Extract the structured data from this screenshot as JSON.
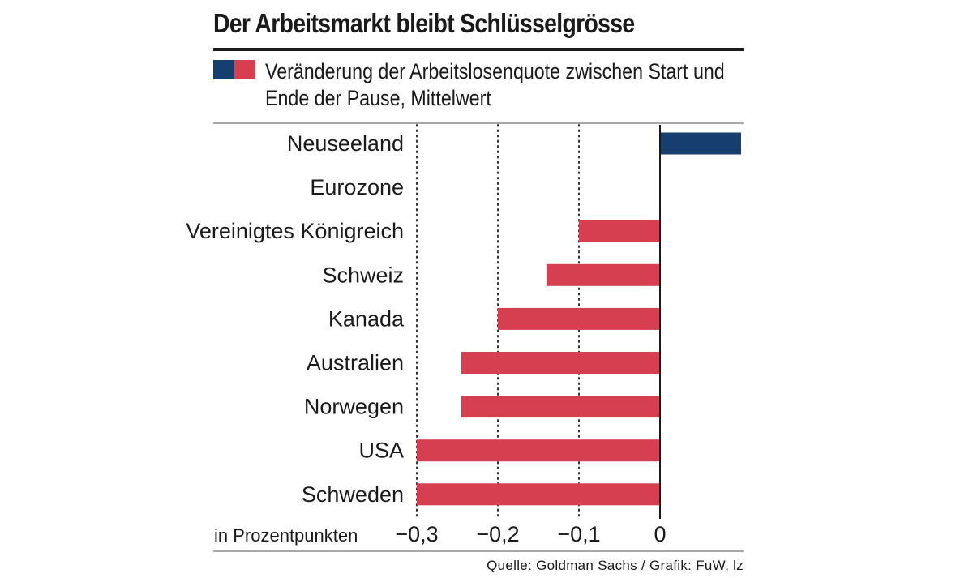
{
  "title": "Der Arbeitsmarkt bleibt Schlüsselgrösse",
  "legend": {
    "text": "Veränderung der Arbeitslosenquote zwischen Start und Ende der Pause, Mittelwert",
    "colors": [
      "#163f70",
      "#d63f4f"
    ]
  },
  "source": "Quelle: Goldman Sachs / Grafik: FuW, lz",
  "chart_data": {
    "type": "bar",
    "orientation": "horizontal",
    "title": "Der Arbeitsmarkt bleibt Schlüsselgrösse",
    "xlabel": "in Prozentpunkten",
    "ylabel": "",
    "categories": [
      "Neuseeland",
      "Eurozone",
      "Vereinigtes Königreich",
      "Schweiz",
      "Kanada",
      "Australien",
      "Norwegen",
      "USA",
      "Schweden"
    ],
    "values": [
      0.1,
      0.0,
      -0.1,
      -0.14,
      -0.2,
      -0.245,
      -0.245,
      -0.3,
      -0.3
    ],
    "xlim": [
      -0.3,
      0.1
    ],
    "ticks": [
      -0.3,
      -0.2,
      -0.1,
      0
    ],
    "tick_labels": [
      "−0,3",
      "−0,2",
      "−0,1",
      "0"
    ],
    "grid": "dotted vertical",
    "positive_color": "#163f70",
    "negative_color": "#d63f4f"
  }
}
